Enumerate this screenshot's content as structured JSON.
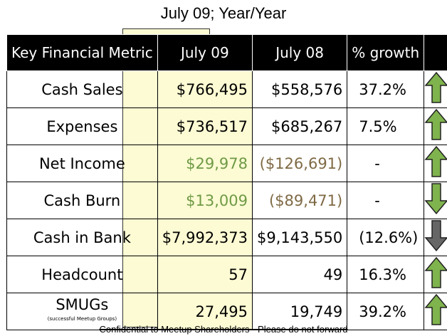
{
  "title": "July 09; Year/Year",
  "headers": {
    "metric": "Key Financial Metric",
    "current": "July 09",
    "prior": "July 08",
    "growth": "% growth",
    "arrow": ""
  },
  "rows": [
    {
      "metric": "Cash Sales",
      "sub": "",
      "current": "$766,495",
      "prior": "$558,576",
      "growth": "37.2%",
      "arrow": "up",
      "arrow_color": "#7fb34d"
    },
    {
      "metric": "Expenses",
      "sub": "",
      "current": "$736,517",
      "prior": "$685,267",
      "growth": "7.5%",
      "arrow": "up",
      "arrow_color": "#7fb34d"
    },
    {
      "metric": "Net Income",
      "sub": "",
      "current": "$29,978",
      "prior": "($126,691)",
      "growth": "-",
      "arrow": "up",
      "arrow_color": "#7fb34d"
    },
    {
      "metric": "Cash Burn",
      "sub": "",
      "current": "$13,009",
      "prior": "($89,471)",
      "growth": "-",
      "arrow": "down",
      "arrow_color": "#7fb34d"
    },
    {
      "metric": "Cash in Bank",
      "sub": "",
      "current": "$7,992,373",
      "prior": "$9,143,550",
      "growth": "(12.6%)",
      "arrow": "down",
      "arrow_color": "#666666"
    },
    {
      "metric": "Headcount",
      "sub": "",
      "current": "57",
      "prior": "49",
      "growth": "16.3%",
      "arrow": "up",
      "arrow_color": "#7fb34d"
    },
    {
      "metric": "SMUGs",
      "sub": "(successful Meetup Groups)",
      "current": "27,495",
      "prior": "19,749",
      "growth": "39.2%",
      "arrow": "up",
      "arrow_color": "#7fb34d"
    }
  ],
  "footer": "Confidential to Meetup Shareholders - Please do not forward"
}
